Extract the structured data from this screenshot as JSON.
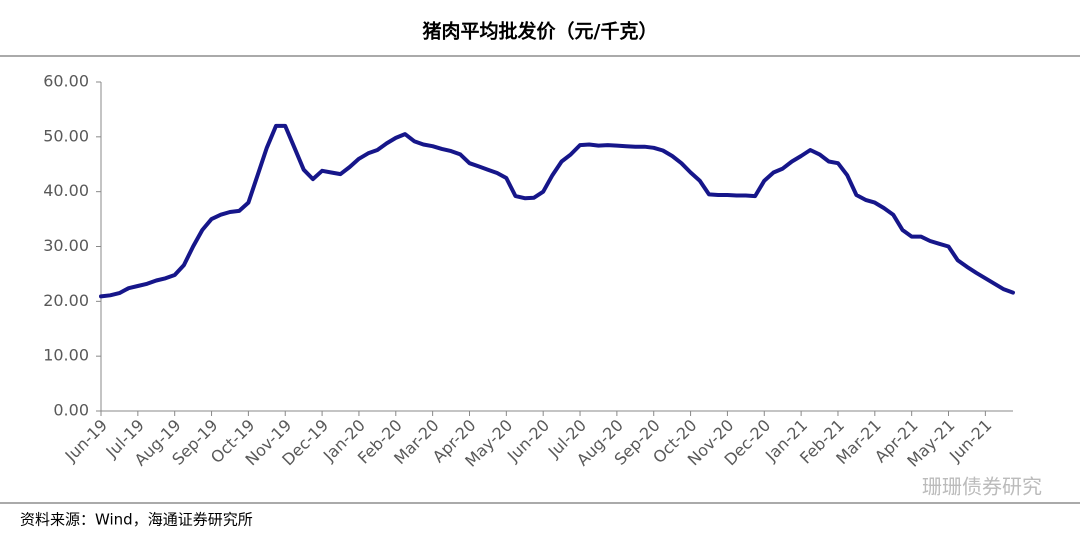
{
  "chart_data": {
    "type": "line",
    "title": "猪肉平均批发价（元/千克）",
    "source": "资料来源：Wind，海通证券研究所",
    "watermark": "珊珊债券研究",
    "categories": [
      "Jun-19",
      null,
      null,
      null,
      "Jul-19",
      null,
      null,
      null,
      "Aug-19",
      null,
      null,
      null,
      "Sep-19",
      null,
      null,
      null,
      "Oct-19",
      null,
      null,
      null,
      "Nov-19",
      null,
      null,
      null,
      "Dec-19",
      null,
      null,
      null,
      "Jan-20",
      null,
      null,
      null,
      "Feb-20",
      null,
      null,
      null,
      "Mar-20",
      null,
      null,
      null,
      "Apr-20",
      null,
      null,
      null,
      "May-20",
      null,
      null,
      null,
      "Jun-20",
      null,
      null,
      null,
      "Jul-20",
      null,
      null,
      null,
      "Aug-20",
      null,
      null,
      null,
      "Sep-20",
      null,
      null,
      null,
      "Oct-20",
      null,
      null,
      null,
      "Nov-20",
      null,
      null,
      null,
      "Dec-20",
      null,
      null,
      null,
      "Jan-21",
      null,
      null,
      null,
      "Feb-21",
      null,
      null,
      null,
      "Mar-21",
      null,
      null,
      null,
      "Apr-21",
      null,
      null,
      null,
      "May-21",
      null,
      null,
      null,
      "Jun-21",
      null,
      null,
      null
    ],
    "series": [
      {
        "color": "#16168a",
        "values": [
          20.9,
          21.1,
          21.5,
          22.4,
          22.8,
          23.2,
          23.8,
          24.2,
          24.8,
          26.6,
          30,
          33,
          35,
          35.8,
          36.3,
          36.5,
          38,
          43,
          48,
          52,
          52,
          48,
          44,
          42.3,
          43.8,
          43.5,
          43.2,
          44.5,
          46,
          47,
          47.6,
          48.8,
          49.8,
          50.5,
          49.2,
          48.6,
          48.3,
          47.8,
          47.4,
          46.8,
          45.2,
          44.6,
          44,
          43.4,
          42.5,
          39.2,
          38.8,
          38.9,
          40,
          43,
          45.5,
          46.8,
          48.5,
          48.6,
          48.4,
          48.5,
          48.4,
          48.3,
          48.2,
          48.2,
          48,
          47.5,
          46.5,
          45.2,
          43.5,
          42,
          39.5,
          39.4,
          39.4,
          39.3,
          39.3,
          39.2,
          42,
          43.5,
          44.2,
          45.5,
          46.5,
          47.6,
          46.8,
          45.5,
          45.2,
          43,
          39.4,
          38.5,
          38,
          37,
          35.8,
          33,
          31.8,
          31.8,
          31,
          30.5,
          30,
          27.5,
          26.3,
          25.2,
          24.2,
          23.2,
          22.2,
          21.6
        ]
      }
    ],
    "ylim": [
      0,
      60
    ],
    "yticks": [
      {
        "value": 0,
        "label": "0.00"
      },
      {
        "value": 10,
        "label": "10.00"
      },
      {
        "value": 20,
        "label": "20.00"
      },
      {
        "value": 30,
        "label": "30.00"
      },
      {
        "value": 40,
        "label": "40.00"
      },
      {
        "value": 50,
        "label": "50.00"
      },
      {
        "value": 60,
        "label": "60.00"
      }
    ]
  }
}
